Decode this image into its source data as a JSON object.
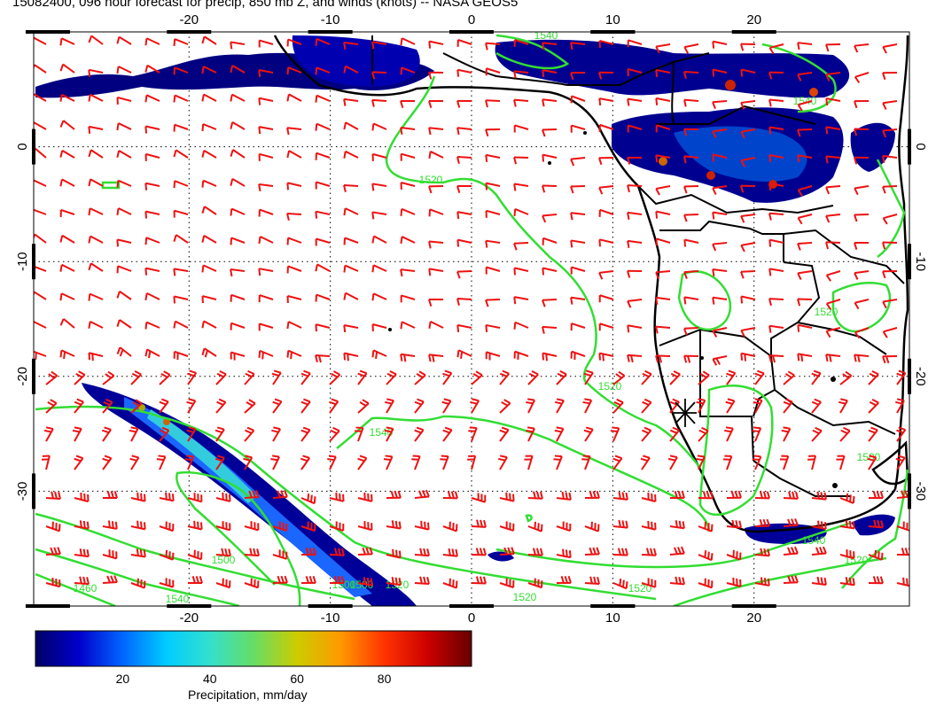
{
  "title": "15082400, 096 hour forecast for precip, 850 mb Z, and winds (knots) -- NASA GEOS5",
  "map": {
    "lon_ticks": [
      "-20",
      "-10",
      "0",
      "10",
      "20"
    ],
    "lat_ticks": [
      "0",
      "-10",
      "-20",
      "-30"
    ],
    "lon_range": [
      -31,
      31
    ],
    "lat_range": [
      -40,
      10
    ],
    "grid": true
  },
  "contours": {
    "color": "#33dd33",
    "labels": [
      "1520",
      "1540",
      "1520",
      "1540",
      "1500",
      "1540",
      "1460",
      "1520",
      "1520",
      "1540",
      "1520",
      "1500",
      "1540",
      "1520",
      "1500",
      "1520",
      "1500"
    ]
  },
  "winds": {
    "color": "#ee1111"
  },
  "colorbar": {
    "label": "Precipitation, mm/day",
    "ticks": [
      "20",
      "40",
      "60",
      "80"
    ],
    "tick_values": [
      20,
      40,
      60,
      80
    ],
    "range": [
      0,
      100
    ],
    "colors": [
      "#000066",
      "#0000cc",
      "#0066ff",
      "#00ccff",
      "#33e0cc",
      "#66dd66",
      "#cccc00",
      "#ff9900",
      "#ff3300",
      "#cc0000",
      "#660000"
    ]
  },
  "marker": {
    "symbol": "asterisk"
  }
}
